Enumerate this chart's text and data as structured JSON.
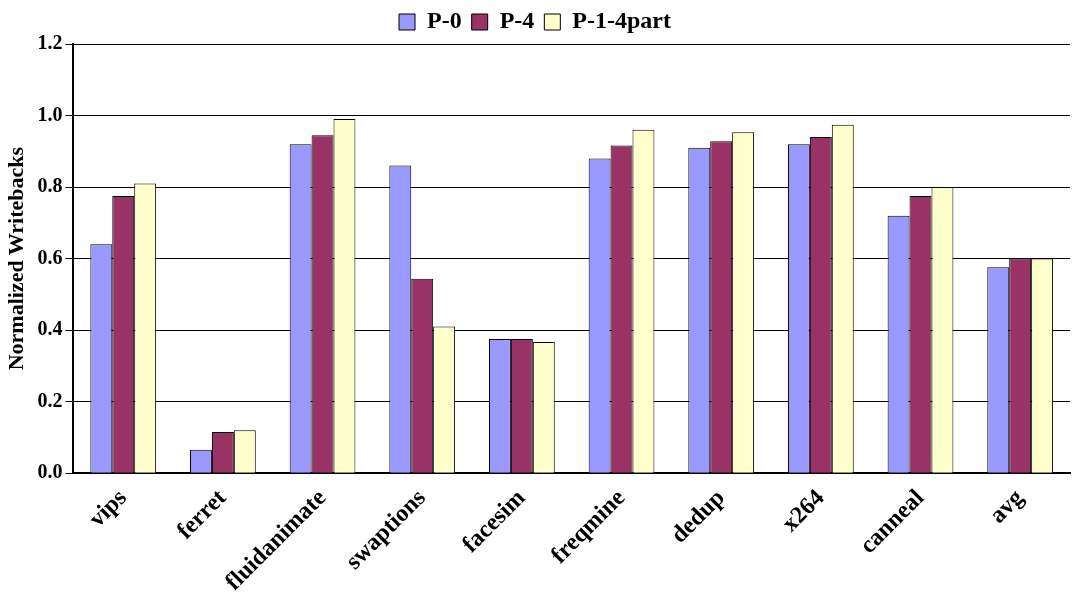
{
  "chart_data": {
    "type": "bar",
    "ylabel": "Normalized Writebacks",
    "categories": [
      "vips",
      "ferret",
      "fluidanimate",
      "swaptions",
      "facesim",
      "freqmine",
      "dedup",
      "x264",
      "canneal",
      "avg"
    ],
    "series": [
      {
        "name": "P-0",
        "color": "#9999ff",
        "values": [
          0.64,
          0.066,
          0.92,
          0.86,
          0.375,
          0.88,
          0.91,
          0.92,
          0.72,
          0.576
        ]
      },
      {
        "name": "P-4",
        "color": "#993366",
        "values": [
          0.775,
          0.115,
          0.945,
          0.544,
          0.375,
          0.916,
          0.928,
          0.94,
          0.775,
          0.6
        ]
      },
      {
        "name": "P-1-4part",
        "color": "#ffffcc",
        "values": [
          0.81,
          0.12,
          0.99,
          0.41,
          0.367,
          0.96,
          0.953,
          0.974,
          0.8,
          0.6
        ]
      }
    ],
    "ylim": [
      0,
      1.2
    ],
    "yticks": [
      {
        "value": 0,
        "label": "0.0"
      },
      {
        "value": 0.2,
        "label": "0.2"
      },
      {
        "value": 0.4,
        "label": "0.4"
      },
      {
        "value": 0.6,
        "label": "0.6"
      },
      {
        "value": 0.8,
        "label": "0.8"
      },
      {
        "value": 1,
        "label": "1.0"
      },
      {
        "value": 1.2,
        "label": "1.2"
      }
    ],
    "grid": "y",
    "legend": "top"
  }
}
